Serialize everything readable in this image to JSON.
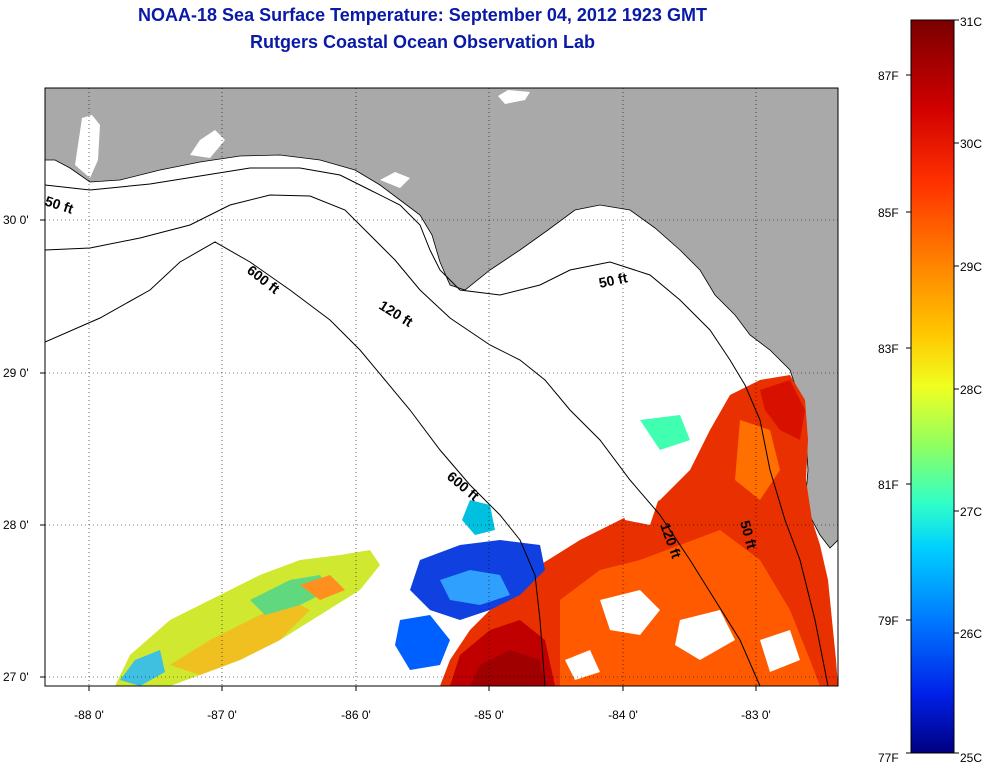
{
  "title": {
    "line1": "NOAA-18 Sea Surface Temperature:  September 04, 2012 1923 GMT",
    "line2": "Rutgers Coastal Ocean Observation Lab"
  },
  "map": {
    "lon_ticks": [
      "-88 0'",
      "-87 0'",
      "-86 0'",
      "-85 0'",
      "-84 0'",
      "-83 0'"
    ],
    "lat_ticks": [
      "30 0'",
      "29 0'",
      "28 0'",
      "27 0'"
    ],
    "contour_labels": [
      "50 ft",
      "600 ft",
      "120 ft",
      "50 ft",
      "600 ft",
      "120 ft",
      "50 ft"
    ],
    "land_color": "#a9a9a9",
    "ocean_color": "#ffffff"
  },
  "colorbar": {
    "celsius": [
      "31C",
      "30C",
      "29C",
      "28C",
      "27C",
      "26C",
      "25C"
    ],
    "fahrenheit": [
      "87F",
      "85F",
      "83F",
      "81F",
      "79F",
      "77F"
    ],
    "colors": [
      "#7a0000",
      "#c80000",
      "#ff2a00",
      "#ff7a00",
      "#ffc000",
      "#ffff20",
      "#a0ff50",
      "#30ffc0",
      "#00c8ff",
      "#0070ff",
      "#0018e0",
      "#00007a"
    ]
  }
}
